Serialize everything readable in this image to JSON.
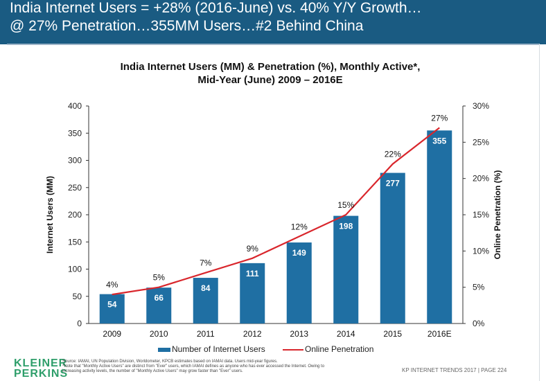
{
  "slide": {
    "headline_1": "India Internet Users = +28% (2016-June) vs. 40% Y/Y Growth…",
    "headline_2": "@ 27% Penetration…355MM Users…#2 Behind China",
    "logo_line_1": "KLEINER",
    "logo_line_2": "PERKINS",
    "source_1": "Source: IAMAI, UN Population Division, Worldometer, KPCB estimates based on IAMAI data. Users mid-year figures.",
    "source_2": "*Note that \"Monthly Active Users\" are distinct from \"Ever\" users, which IAMAI defines as anyone who has ever accessed the Internet. Owing to",
    "source_3": "increasing activity levels, the number of \"Monthly Active Users\" may grow faster than \"Ever\" users.",
    "footer": "KP INTERNET TRENDS 2017  |  PAGE 224"
  },
  "colors": {
    "header_bg": "#1a5b82",
    "bar": "#1f6fa3",
    "line": "#d9262c",
    "logo": "#2e9e6a"
  },
  "chart_data": {
    "type": "bar",
    "title_1": "India Internet Users (MM) & Penetration (%), Monthly Active*,",
    "title_2": "Mid-Year (June) 2009 – 2016E",
    "ylabel": "Internet Users (MM)",
    "y2label": "Online Penetration (%)",
    "categories": [
      "2009",
      "2010",
      "2011",
      "2012",
      "2013",
      "2014",
      "2015",
      "2016E"
    ],
    "series": [
      {
        "name": "Number of Internet Users",
        "type": "bar",
        "values": [
          54,
          66,
          84,
          111,
          149,
          198,
          277,
          355
        ]
      },
      {
        "name": "Online Penetration",
        "type": "line",
        "axis": "right",
        "values": [
          4,
          5,
          7,
          9,
          12,
          15,
          22,
          27
        ]
      }
    ],
    "bar_labels": [
      "54",
      "66",
      "84",
      "111",
      "149",
      "198",
      "277",
      "355"
    ],
    "line_labels": [
      "4%",
      "5%",
      "7%",
      "9%",
      "12%",
      "15%",
      "22%",
      "27%"
    ],
    "ylim": [
      0,
      400
    ],
    "y2lim": [
      0,
      30
    ],
    "yticks": [
      "0",
      "50",
      "100",
      "150",
      "200",
      "250",
      "300",
      "350",
      "400"
    ],
    "y2ticks": [
      "0%",
      "5%",
      "10%",
      "15%",
      "20%",
      "25%",
      "30%"
    ],
    "grid": false,
    "legend_position": "bottom"
  }
}
